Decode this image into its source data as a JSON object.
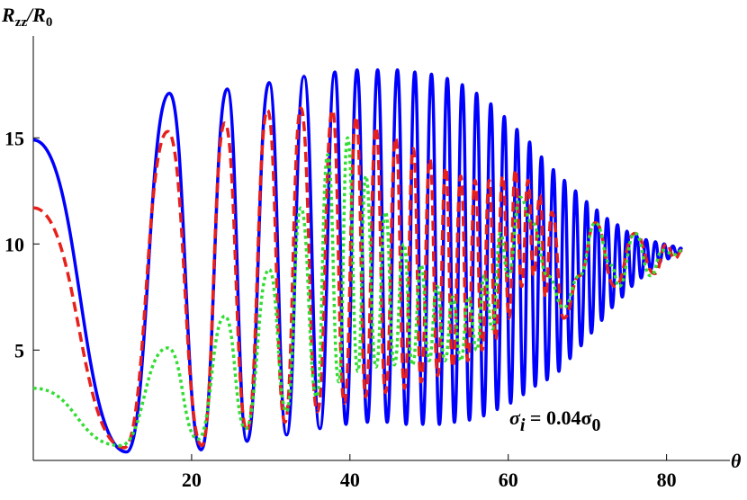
{
  "chart_data": {
    "type": "line",
    "y_label": [
      "R",
      "zz",
      "/R",
      "0"
    ],
    "x_label": "θ",
    "annotation": [
      "σ",
      "i",
      " = 0.04σ",
      "0"
    ],
    "xlim": [
      0,
      88
    ],
    "ylim": [
      -0.2,
      19.8
    ],
    "xticks": [
      20,
      40,
      60,
      80
    ],
    "yticks": [
      5,
      10,
      15
    ],
    "grid": false,
    "series": [
      {
        "name": "blue",
        "color": "#0000ff",
        "style": "solid",
        "x": [
          0,
          11.8,
          17.2,
          21.2,
          24.5,
          27,
          29.8,
          32,
          34.2,
          36.2,
          38.1,
          39.5,
          40.9,
          42.2,
          43.5,
          44.7,
          46,
          47.1,
          48.2,
          49.2,
          50.3,
          51.3,
          52.3,
          53.2,
          54.2,
          55.1,
          56,
          56.9,
          57.8,
          58.6,
          59.5,
          60.3,
          61.1,
          61.9,
          62.7,
          63.4,
          64.2,
          64.9,
          65.7,
          66.4,
          67.1,
          67.8,
          68.5,
          69.2,
          69.9,
          70.5,
          71.2,
          71.8,
          72.5,
          73.1,
          73.8,
          74.4,
          75,
          75.6,
          76.2,
          76.8,
          77.4,
          78,
          78.6,
          79.1,
          79.7,
          80.2,
          80.8,
          81.3,
          81.8,
          82
        ],
        "values": [
          14.9,
          0.2,
          17.1,
          0.3,
          17.3,
          0.7,
          17.6,
          1.0,
          17.9,
          1.3,
          18.1,
          1.5,
          18.2,
          1.6,
          18.2,
          1.6,
          18.2,
          1.5,
          18.1,
          1.5,
          18,
          1.5,
          17.8,
          1.6,
          17.5,
          1.7,
          17.1,
          1.9,
          16.6,
          2.2,
          16,
          2.5,
          15.4,
          2.9,
          14.8,
          3.3,
          14.1,
          3.6,
          13.5,
          4.0,
          13,
          4.6,
          12.5,
          5.2,
          12,
          5.8,
          11.6,
          6.4,
          11.2,
          7.0,
          10.9,
          7.5,
          10.6,
          8.0,
          10.4,
          8.4,
          10.2,
          8.8,
          10.1,
          9.1,
          10,
          9.3,
          9.9,
          9.5,
          9.8,
          9.7
        ]
      },
      {
        "name": "red",
        "color": "#e8201c",
        "style": "dashed",
        "x": [
          0,
          11.5,
          17,
          21.3,
          24.2,
          27,
          29.6,
          31.8,
          33.8,
          35.9,
          37.8,
          39.3,
          40.8,
          42,
          43.3,
          44.5,
          45.8,
          46.9,
          48,
          49,
          50.1,
          51.1,
          52.1,
          53,
          54,
          54.9,
          55.8,
          56.7,
          57.6,
          58.4,
          59.3,
          60.1,
          60.9,
          61.7,
          62.5,
          63.2,
          64,
          64.7,
          65.5,
          67,
          69,
          71,
          73.5,
          76,
          78.5,
          80,
          81,
          82
        ],
        "values": [
          11.7,
          0.4,
          15.3,
          0.5,
          15.7,
          1.2,
          16.3,
          1.6,
          16.4,
          2.1,
          16.3,
          2.5,
          16,
          2.8,
          15.5,
          3,
          15,
          3.2,
          14.5,
          3.5,
          14,
          3.8,
          13.6,
          4.2,
          13.2,
          4.5,
          13,
          5,
          13,
          5.5,
          13.2,
          6.5,
          13.5,
          8,
          13,
          8.5,
          12.3,
          7.5,
          11.5,
          6.5,
          8.5,
          11,
          8,
          10.5,
          8.6,
          10,
          9.3,
          9.7
        ]
      },
      {
        "name": "green",
        "color": "#33dd33",
        "style": "dotted",
        "x": [
          0,
          11,
          17,
          20.8,
          24.2,
          26.8,
          29.8,
          32,
          33.8,
          35.8,
          37.2,
          38.6,
          39.7,
          41,
          42,
          43.3,
          44.5,
          45.6,
          46.8,
          47.9,
          49,
          50,
          51,
          52,
          53,
          54,
          55,
          56,
          57,
          58,
          59,
          60,
          61.5,
          63,
          65,
          67,
          69,
          71,
          73,
          74,
          76,
          78,
          79.5,
          81,
          82
        ],
        "values": [
          3.2,
          0.5,
          5.1,
          0.8,
          6.6,
          1.3,
          8.8,
          2.1,
          11.7,
          2.8,
          14.2,
          3.5,
          15,
          4,
          13.2,
          4.2,
          11.5,
          4.3,
          10,
          4.3,
          9,
          4.5,
          8,
          4.5,
          7.5,
          4.5,
          7.5,
          5,
          8.5,
          6,
          10.5,
          8.5,
          12.2,
          11,
          8.5,
          7,
          8.5,
          11,
          9,
          8,
          10.5,
          8.5,
          9.7,
          9.5,
          9.7
        ]
      }
    ]
  }
}
